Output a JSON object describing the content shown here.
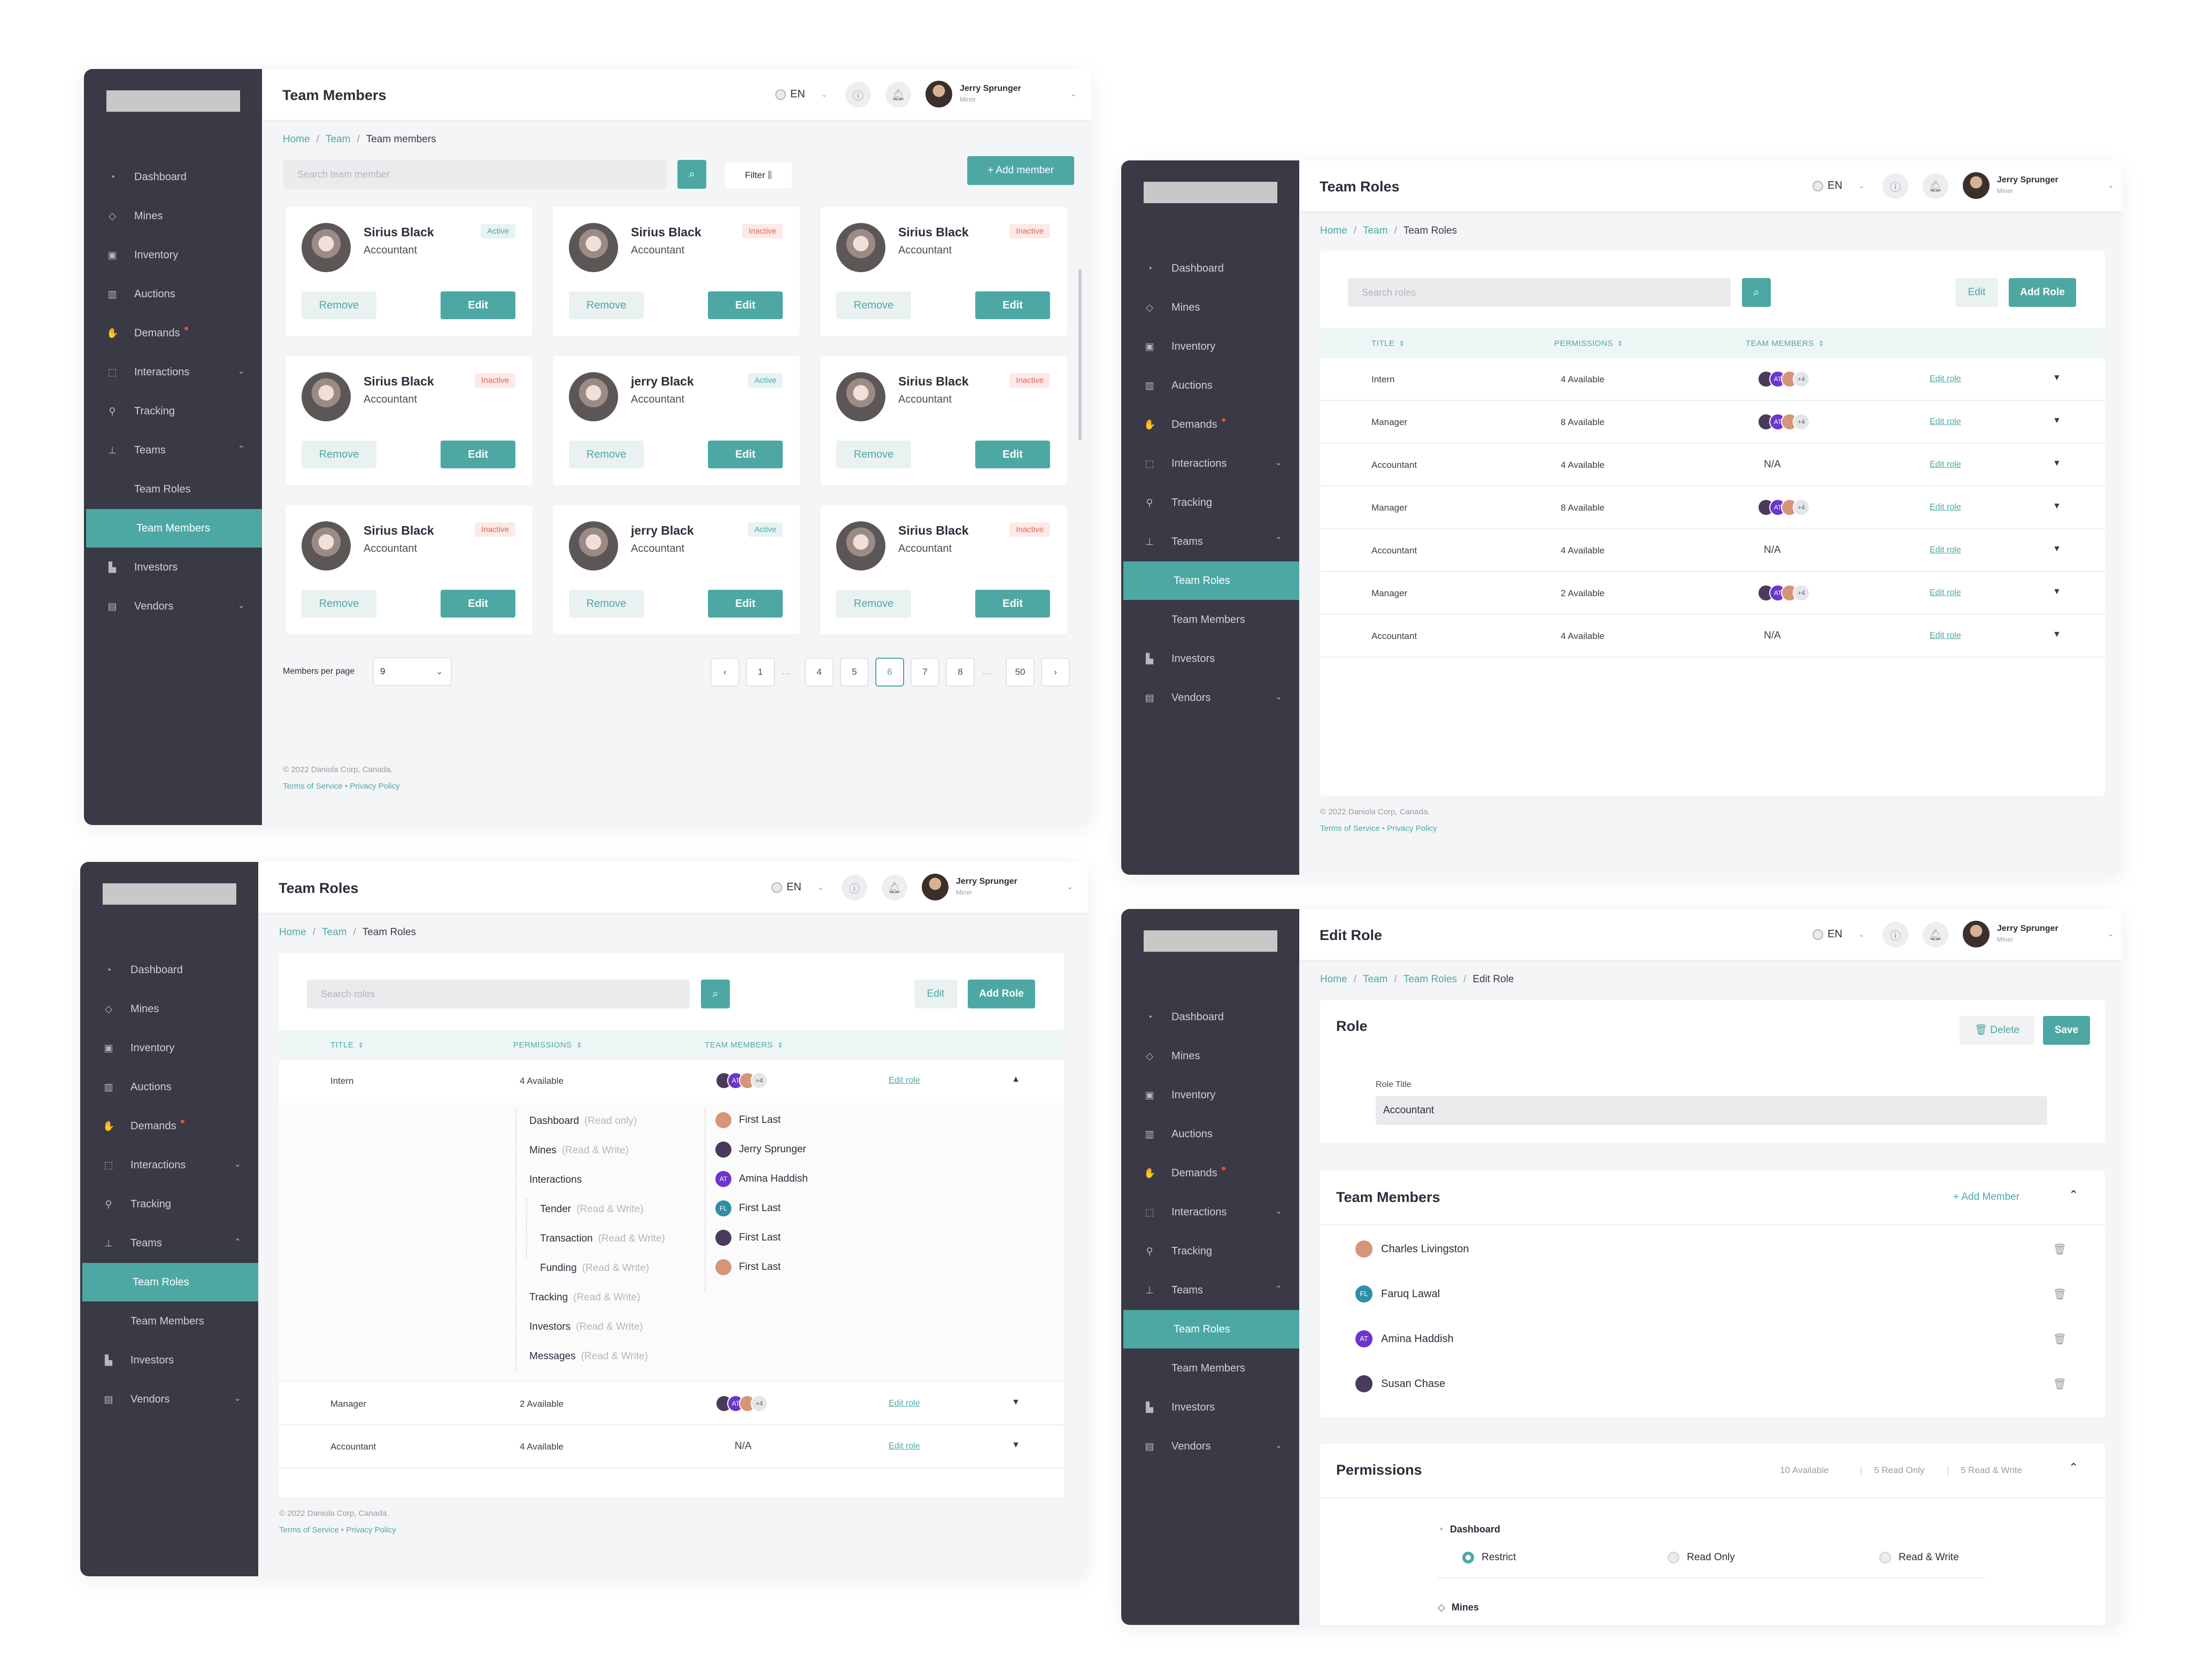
{
  "app": {
    "user_name": "Jerry Sprunger",
    "user_role": "Miner",
    "lang": "EN"
  },
  "nav": {
    "dashboard": "Dashboard",
    "mines": "Mines",
    "inventory": "Inventory",
    "auctions": "Auctions",
    "demands": "Demands",
    "interactions": "Interactions",
    "tracking": "Tracking",
    "teams": "Teams",
    "team_roles": "Team Roles",
    "team_members": "Team Members",
    "investors": "Investors",
    "vendors": "Vendors"
  },
  "footer": {
    "copyright": "© 2022 Daniola Corp, Canada.",
    "terms": "Terms of Service",
    "sep": " • ",
    "privacy": "Privacy Policy"
  },
  "members_page": {
    "title": "Team Members",
    "breadcrumb": [
      "Home",
      "Team",
      "Team members"
    ],
    "search_placeholder": "Search team member",
    "filter_label": "Filter",
    "add_label": "+ Add member",
    "remove_label": "Remove",
    "edit_label": "Edit",
    "cards": [
      {
        "name": "Sirius  Black",
        "role": "Accountant",
        "status": "Active"
      },
      {
        "name": "Sirius Black",
        "role": "Accountant",
        "status": "Inactive"
      },
      {
        "name": "Sirius Black",
        "role": "Accountant",
        "status": "Inactive"
      },
      {
        "name": "Sirius Black",
        "role": "Accountant",
        "status": "Inactive"
      },
      {
        "name": "jerry  Black",
        "role": "Accountant",
        "status": "Active"
      },
      {
        "name": "Sirius Black",
        "role": "Accountant",
        "status": "Inactive"
      },
      {
        "name": "Sirius Black",
        "role": "Accountant",
        "status": "Inactive"
      },
      {
        "name": "jerry  Black",
        "role": "Accountant",
        "status": "Active"
      },
      {
        "name": "Sirius Black",
        "role": "Accountant",
        "status": "Inactive"
      }
    ],
    "per_page_label": "Members per page",
    "per_page_value": "9",
    "pages": [
      "1",
      "…",
      "4",
      "5",
      "6",
      "7",
      "8",
      "…",
      "50"
    ],
    "current_page": "6"
  },
  "roles_page": {
    "title": "Team Roles",
    "breadcrumb": [
      "Home",
      "Team",
      "Team Roles"
    ],
    "search_placeholder": "Search roles",
    "edit_label": "Edit",
    "add_label": "Add Role",
    "cols": [
      "TITLE",
      "PERMISSIONS",
      "TEAM MEMBERS"
    ],
    "edit_role": "Edit role",
    "rows": [
      {
        "title": "Intern",
        "perm": "4 Available",
        "members": "avatars"
      },
      {
        "title": "Manager",
        "perm": "8 Available",
        "members": "avatars"
      },
      {
        "title": "Accountant",
        "perm": "4 Available",
        "members": "N/A"
      },
      {
        "title": "Manager",
        "perm": "8 Available",
        "members": "avatars"
      },
      {
        "title": "Accountant",
        "perm": "4 Available",
        "members": "N/A"
      },
      {
        "title": "Manager",
        "perm": "2 Available",
        "members": "avatars"
      },
      {
        "title": "Accountant",
        "perm": "4 Available",
        "members": "N/A"
      }
    ],
    "avatar_initials": "AT",
    "avatar_more": "+4"
  },
  "roles_expanded": {
    "rows": [
      {
        "title": "Intern",
        "perm": "4 Available"
      },
      {
        "title": "Manager",
        "perm": "2 Available"
      },
      {
        "title": "Accountant",
        "perm": "4 Available",
        "members": "N/A"
      }
    ],
    "permissions": [
      {
        "name": "Dashboard",
        "mode": "(Read only)"
      },
      {
        "name": "Mines",
        "mode": "(Read & Write)"
      },
      {
        "name": "Interactions",
        "mode": ""
      },
      {
        "name": "Tender",
        "mode": "(Read & Write)"
      },
      {
        "name": "Transaction",
        "mode": "(Read & Write)"
      },
      {
        "name": "Funding",
        "mode": "(Read & Write)"
      },
      {
        "name": "Tracking",
        "mode": "(Read & Write)"
      },
      {
        "name": "Investors",
        "mode": "(Read & Write)"
      },
      {
        "name": "Messages",
        "mode": "(Read & Write)"
      }
    ],
    "members": [
      "First Last",
      "Jerry Sprunger",
      "Amina Haddish",
      "First Last",
      "First Last",
      "First Last"
    ],
    "member_initials": [
      "",
      "",
      "AT",
      "FL",
      "",
      ""
    ]
  },
  "edit_page": {
    "title": "Edit Role",
    "breadcrumb": [
      "Home",
      "Team",
      "Team Roles",
      "Edit Role"
    ],
    "role_heading": "Role",
    "delete_label": "Delete",
    "save_label": "Save",
    "role_title_label": "Role Title",
    "role_title_value": "Accountant",
    "members_heading": "Team Members",
    "add_member_label": "+ Add Member",
    "members": [
      {
        "name": "Charles Livingston",
        "initials": ""
      },
      {
        "name": "Faruq Lawal",
        "initials": "FL"
      },
      {
        "name": "Amina Haddish",
        "initials": "AT"
      },
      {
        "name": "Susan Chase",
        "initials": ""
      }
    ],
    "permissions_heading": "Permissions",
    "perm_stats": [
      "10 Available",
      "5 Read Only",
      "5 Read & Write"
    ],
    "perm_dashboard": "Dashboard",
    "options": [
      "Restrict",
      "Read Only",
      "Read & Write"
    ],
    "perm_mines": "Mines"
  },
  "colors": {
    "accent": "#4da8a4",
    "sidebar": "#393a45",
    "danger": "#e06556"
  }
}
